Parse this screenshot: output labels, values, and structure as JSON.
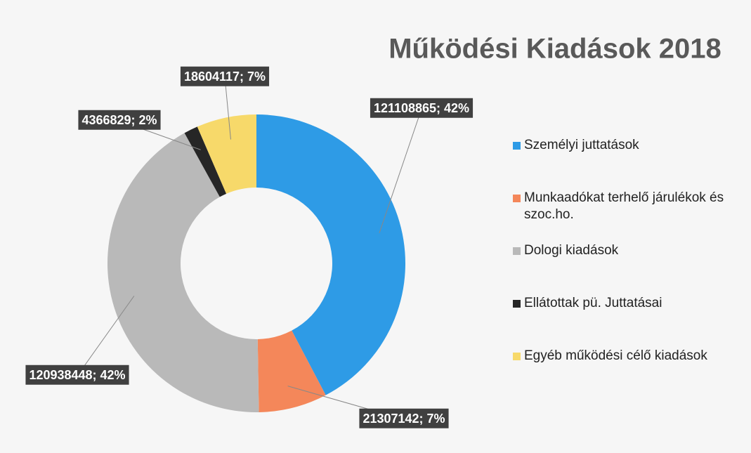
{
  "chart_data": {
    "type": "donut",
    "title": "Működési Kiadások 2018",
    "categories": [
      "Személyi juttatások",
      "Munkaadókat terhelő járulékok és szoc.ho.",
      "Dologi kiadások",
      "Ellátottak pü. Juttatásai",
      "Egyéb működési célő kiadások"
    ],
    "values": [
      121108865,
      21307142,
      120938448,
      4366829,
      18604117
    ],
    "value_labels": [
      "121108865; 42%",
      "21307142; 7%",
      "120938448; 42%",
      "4366829; 2%",
      "18604117; 7%"
    ],
    "colors": [
      "#2e9be6",
      "#f4875a",
      "#b9b9b9",
      "#262626",
      "#f7d96a"
    ],
    "legend": "right"
  }
}
